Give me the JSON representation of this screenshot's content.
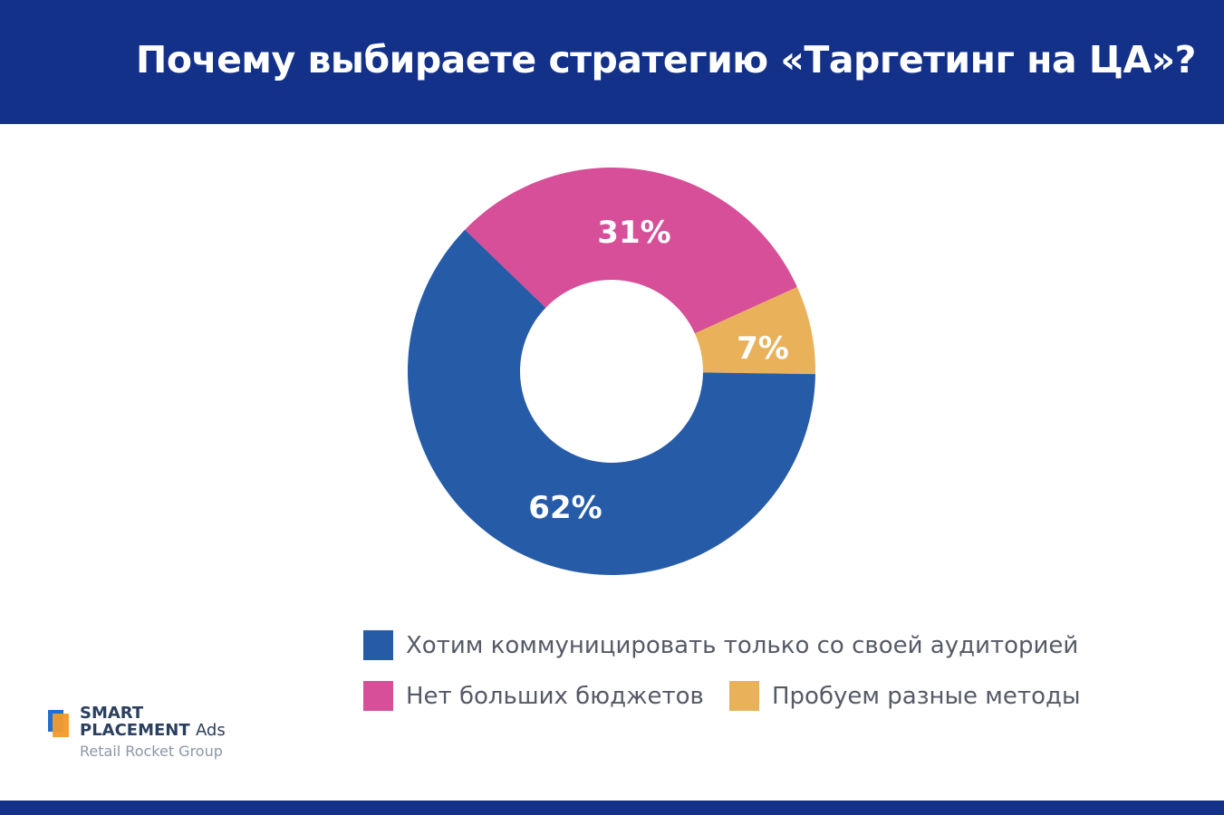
{
  "header": {
    "title": "Почему выбираете стратегию «Таргетинг на ЦА»?"
  },
  "chart_data": {
    "type": "pie",
    "donut": true,
    "title": "Почему выбираете стратегию «Таргетинг на ЦА»?",
    "slices": [
      {
        "name": "Нет больших бюджетов",
        "value": 31,
        "label": "31%",
        "color": "#d64f98"
      },
      {
        "name": "Пробуем разные методы",
        "value": 7,
        "label": "7%",
        "color": "#e8b15a"
      },
      {
        "name": "Хотим коммуницировать только со своей аудиторией",
        "value": 62,
        "label": "62%",
        "color": "#265ba8"
      }
    ],
    "legend_placement": "bottom"
  },
  "logo": {
    "line1": "SMART",
    "line2": "PLACEMENT",
    "line2b": "Ads",
    "line3": "Retail Rocket Group"
  }
}
